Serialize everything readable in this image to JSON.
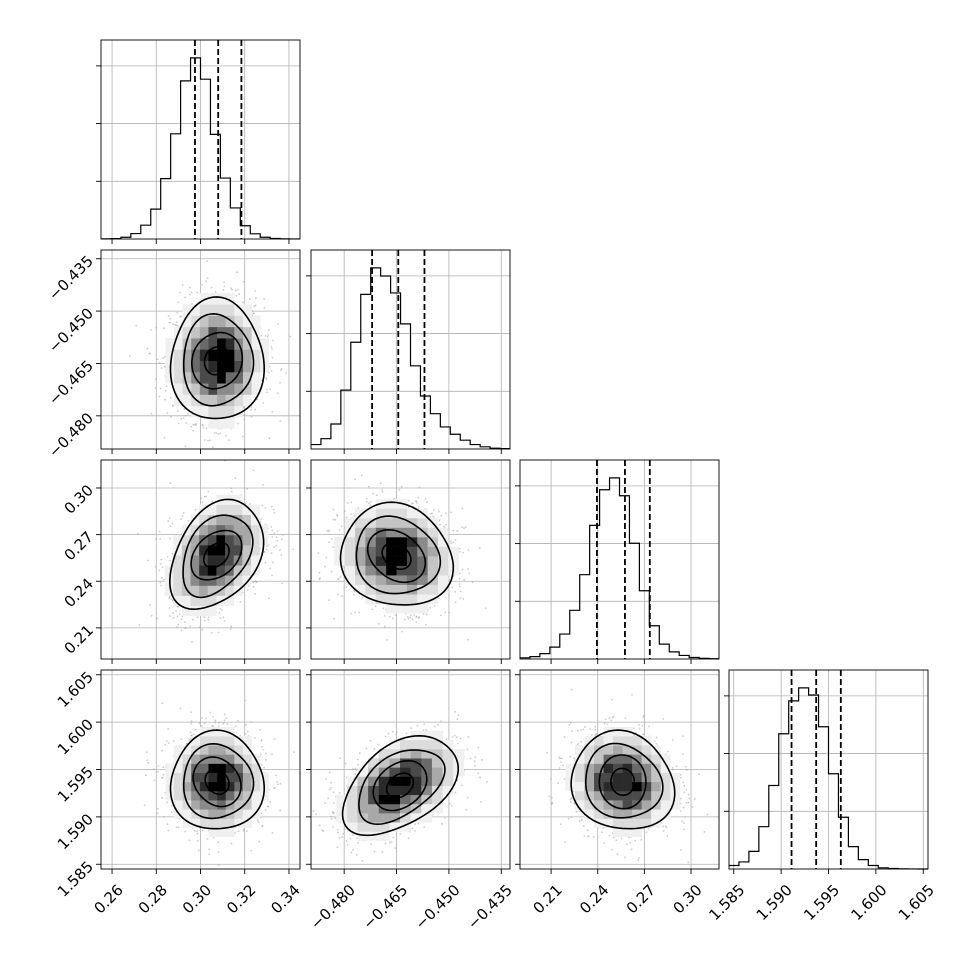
{
  "chart_data": {
    "type": "corner",
    "grid": true,
    "parameters": [
      {
        "xlim": [
          0.255,
          0.345
        ],
        "xticks": [
          "0.26",
          "0.28",
          "0.30",
          "0.32",
          "0.34"
        ],
        "xtick_values": [
          0.26,
          0.28,
          0.3,
          0.32,
          0.34
        ],
        "quantiles": [
          0.2975,
          0.308,
          0.3185
        ],
        "histogram": {
          "bin_start": 0.255,
          "bin_width": 0.0045,
          "counts": [
            2,
            8,
            30,
            95,
            240,
            520,
            1050,
            1830,
            2750,
            3150,
            2780,
            1820,
            1060,
            540,
            230,
            90,
            30,
            10,
            3,
            1
          ]
        }
      },
      {
        "xlim": [
          -0.4895,
          -0.4325
        ],
        "xticks": [
          "−0.480",
          "−0.465",
          "−0.450",
          "−0.435"
        ],
        "xtick_values": [
          -0.48,
          -0.465,
          -0.45,
          -0.435
        ],
        "yticks": [
          "−0.435",
          "−0.450",
          "−0.465",
          "−0.480"
        ],
        "ytick_values": [
          -0.435,
          -0.45,
          -0.465,
          -0.48
        ],
        "quantiles": [
          -0.472,
          -0.4645,
          -0.457
        ],
        "histogram": {
          "bin_start": -0.4895,
          "bin_width": 0.00285,
          "counts": [
            60,
            140,
            340,
            800,
            1450,
            2100,
            2460,
            2350,
            2120,
            1700,
            1130,
            720,
            480,
            300,
            200,
            120,
            60,
            30,
            10,
            5
          ]
        }
      },
      {
        "xlim": [
          0.19,
          0.318
        ],
        "xticks": [
          "0.21",
          "0.24",
          "0.27",
          "0.30"
        ],
        "xtick_values": [
          0.21,
          0.24,
          0.27,
          0.3
        ],
        "yticks": [
          "0.30",
          "0.27",
          "0.24",
          "0.21"
        ],
        "ytick_values": [
          0.3,
          0.27,
          0.24,
          0.21
        ],
        "quantiles": [
          0.2395,
          0.2575,
          0.2735
        ],
        "histogram": {
          "bin_start": 0.19,
          "bin_width": 0.0064,
          "counts": [
            20,
            40,
            90,
            200,
            420,
            820,
            1420,
            2250,
            2850,
            3050,
            2750,
            1950,
            1150,
            560,
            250,
            120,
            60,
            25,
            10,
            5
          ]
        }
      },
      {
        "xlim": [
          1.5845,
          1.6055
        ],
        "xticks": [
          "1.585",
          "1.590",
          "1.595",
          "1.600",
          "1.605"
        ],
        "xtick_values": [
          1.585,
          1.59,
          1.595,
          1.6,
          1.605
        ],
        "yticks": [
          "1.605",
          "1.600",
          "1.595",
          "1.590",
          "1.585"
        ],
        "ytick_values": [
          1.605,
          1.6,
          1.595,
          1.59,
          1.585
        ],
        "quantiles": [
          1.5911,
          1.5937,
          1.5963
        ],
        "histogram": {
          "bin_start": 1.5845,
          "bin_width": 0.00105,
          "counts": [
            60,
            120,
            300,
            720,
            1420,
            2300,
            2860,
            3080,
            2960,
            2420,
            1620,
            880,
            380,
            160,
            60,
            20,
            8,
            3,
            1,
            0
          ]
        }
      }
    ],
    "pairs": [
      {
        "row": 1,
        "col": 0,
        "mean": [
          0.3075,
          -0.4642
        ],
        "sd": [
          0.0105,
          0.0087
        ],
        "rho": 0.0
      },
      {
        "row": 2,
        "col": 0,
        "mean": [
          0.3072,
          0.2568
        ],
        "sd": [
          0.0105,
          0.0175
        ],
        "rho": 0.35
      },
      {
        "row": 2,
        "col": 1,
        "mean": [
          -0.465,
          0.2562
        ],
        "sd": [
          0.008,
          0.0165
        ],
        "rho": -0.1
      },
      {
        "row": 3,
        "col": 0,
        "mean": [
          0.3075,
          1.5937
        ],
        "sd": [
          0.0105,
          0.0026
        ],
        "rho": 0.0
      },
      {
        "row": 3,
        "col": 1,
        "mean": [
          -0.464,
          1.5933
        ],
        "sd": [
          0.0082,
          0.0026
        ],
        "rho": 0.45
      },
      {
        "row": 3,
        "col": 2,
        "mean": [
          0.256,
          1.5937
        ],
        "sd": [
          0.0165,
          0.0026
        ],
        "rho": -0.1
      }
    ],
    "contour_levels_sigma": [
      0.5,
      1.0,
      1.5,
      2.0
    ],
    "colors": {
      "density": "#000000",
      "points": "#a8a8a8",
      "grid": "#b0b0b0",
      "frame": "#000000"
    }
  }
}
